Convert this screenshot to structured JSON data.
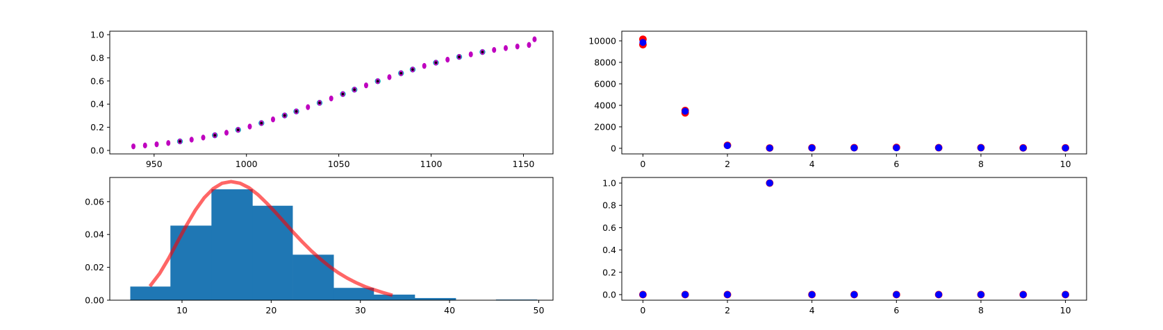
{
  "chart_data": [
    {
      "id": "sigmoid",
      "type": "scatter",
      "title": "",
      "xlabel": "",
      "ylabel": "",
      "xlim": [
        926,
        1166
      ],
      "ylim": [
        -0.03,
        1.03
      ],
      "xticks": [
        950,
        1000,
        1050,
        1100,
        1150
      ],
      "yticks": [
        0.0,
        0.2,
        0.4,
        0.6,
        0.8,
        1.0
      ],
      "ytick_format": "fixed1",
      "grid": false,
      "colors": {
        "magenta": "#bf00bf",
        "cyan": "#00bfbf",
        "black": "#000000"
      },
      "series": [
        {
          "marker": "magenta-dot",
          "x": [
            938.8,
            945.1,
            951.4,
            957.7,
            964.0,
            970.3,
            976.6,
            982.9,
            989.2,
            995.5,
            1001.8,
            1008.1,
            1014.4,
            1020.7,
            1027.0,
            1033.3,
            1039.6,
            1045.9,
            1052.2,
            1058.5,
            1064.8,
            1071.1,
            1077.4,
            1083.7,
            1090.0,
            1096.3,
            1102.6,
            1108.9,
            1115.2,
            1121.5,
            1127.8,
            1134.1,
            1140.4,
            1146.7,
            1153.0,
            1156.0
          ],
          "y": [
            0.035,
            0.043,
            0.053,
            0.064,
            0.078,
            0.093,
            0.111,
            0.131,
            0.153,
            0.178,
            0.206,
            0.236,
            0.268,
            0.302,
            0.337,
            0.374,
            0.411,
            0.449,
            0.487,
            0.525,
            0.562,
            0.598,
            0.633,
            0.667,
            0.699,
            0.73,
            0.758,
            0.784,
            0.808,
            0.83,
            0.85,
            0.868,
            0.884,
            0.898,
            0.911,
            0.96
          ]
        },
        {
          "marker": "cyan-ring",
          "x": [
            964.0,
            982.9,
            995.5,
            1008.1,
            1020.7,
            1027.0,
            1039.6,
            1052.2,
            1058.5,
            1071.1,
            1083.7,
            1090.0,
            1102.6,
            1115.2,
            1127.8
          ],
          "y": [
            0.078,
            0.131,
            0.178,
            0.236,
            0.302,
            0.337,
            0.411,
            0.487,
            0.525,
            0.598,
            0.667,
            0.699,
            0.758,
            0.808,
            0.85
          ]
        }
      ]
    },
    {
      "id": "histogram",
      "type": "bar",
      "title": "",
      "xlabel": "",
      "ylabel": "",
      "xlim": [
        1.9,
        51.6
      ],
      "ylim": [
        0,
        0.0747
      ],
      "xticks": [
        10,
        20,
        30,
        40,
        50
      ],
      "yticks": [
        0.0,
        0.02,
        0.04,
        0.06
      ],
      "ytick_format": "fixed2",
      "grid": false,
      "colors": {
        "bars": "#1f77b4",
        "curve": "#ff0000"
      },
      "bins": [
        {
          "x0": 4.2,
          "x1": 8.7,
          "value": 0.0083
        },
        {
          "x0": 8.7,
          "x1": 13.3,
          "value": 0.0454
        },
        {
          "x0": 13.3,
          "x1": 17.9,
          "value": 0.0675
        },
        {
          "x0": 17.9,
          "x1": 22.4,
          "value": 0.0575
        },
        {
          "x0": 22.4,
          "x1": 27.0,
          "value": 0.0277
        },
        {
          "x0": 27.0,
          "x1": 31.5,
          "value": 0.0075
        },
        {
          "x0": 31.5,
          "x1": 36.1,
          "value": 0.0034
        },
        {
          "x0": 36.1,
          "x1": 40.7,
          "value": 0.0013
        },
        {
          "x0": 40.7,
          "x1": 45.2,
          "value": 0.0
        },
        {
          "x0": 45.2,
          "x1": 49.8,
          "value": 0.0004
        }
      ],
      "curve": {
        "x": [
          6.4,
          7.5,
          8.5,
          9.5,
          10.5,
          11.5,
          12.5,
          13.5,
          14.5,
          15.5,
          16.5,
          17.5,
          18.5,
          19.5,
          20.5,
          21.5,
          22.5,
          23.5,
          24.5,
          25.5,
          26.5,
          27.5,
          28.5,
          29.5,
          30.5,
          31.5,
          32.5,
          33.6
        ],
        "y": [
          0.0085,
          0.0163,
          0.0254,
          0.0356,
          0.0456,
          0.0548,
          0.0624,
          0.0679,
          0.0712,
          0.0722,
          0.0712,
          0.0685,
          0.0643,
          0.0591,
          0.0533,
          0.0473,
          0.0412,
          0.0354,
          0.03,
          0.0251,
          0.0207,
          0.0168,
          0.0135,
          0.0107,
          0.0083,
          0.0064,
          0.0047,
          0.003
        ]
      }
    },
    {
      "id": "counts",
      "type": "scatter",
      "title": "",
      "xlabel": "",
      "ylabel": "",
      "xlim": [
        -0.5,
        10.5
      ],
      "ylim": [
        -520,
        10900
      ],
      "xticks": [
        0,
        2,
        4,
        6,
        8,
        10
      ],
      "yticks": [
        0,
        2000,
        4000,
        6000,
        8000,
        10000
      ],
      "ytick_format": "int",
      "grid": false,
      "colors": {
        "red": "#ff0000",
        "blue": "#0000ff"
      },
      "series": [
        {
          "marker": "red-dot",
          "x": [
            0,
            0,
            1,
            1,
            2,
            3,
            4,
            5,
            6,
            7,
            8,
            9,
            10
          ],
          "y": [
            10150,
            9650,
            3520,
            3300,
            280,
            30,
            50,
            60,
            80,
            60,
            60,
            40,
            40
          ]
        },
        {
          "marker": "blue-dot",
          "x": [
            0,
            1,
            2,
            3,
            4,
            5,
            6,
            7,
            8,
            9,
            10
          ],
          "y": [
            9850,
            3450,
            250,
            20,
            40,
            40,
            50,
            50,
            50,
            30,
            30
          ]
        }
      ]
    },
    {
      "id": "flags",
      "type": "scatter",
      "title": "",
      "xlabel": "",
      "ylabel": "",
      "xlim": [
        -0.5,
        10.5
      ],
      "ylim": [
        -0.05,
        1.05
      ],
      "xticks": [
        0,
        2,
        4,
        6,
        8,
        10
      ],
      "yticks": [
        0.0,
        0.2,
        0.4,
        0.6,
        0.8,
        1.0
      ],
      "ytick_format": "fixed1",
      "grid": false,
      "colors": {
        "red": "#ff0000",
        "blue": "#0000ff"
      },
      "series": [
        {
          "marker": "red-dot",
          "x": [
            0,
            1,
            2,
            3,
            4,
            5,
            6,
            7,
            8,
            9,
            10
          ],
          "y": [
            0,
            0,
            0,
            1,
            0,
            0,
            0,
            0,
            0,
            0,
            0
          ]
        },
        {
          "marker": "blue-dot",
          "x": [
            0,
            1,
            2,
            3,
            4,
            5,
            6,
            7,
            8,
            9,
            10
          ],
          "y": [
            0,
            0,
            0,
            1,
            0,
            0,
            0,
            0,
            0,
            0,
            0
          ]
        }
      ]
    }
  ]
}
